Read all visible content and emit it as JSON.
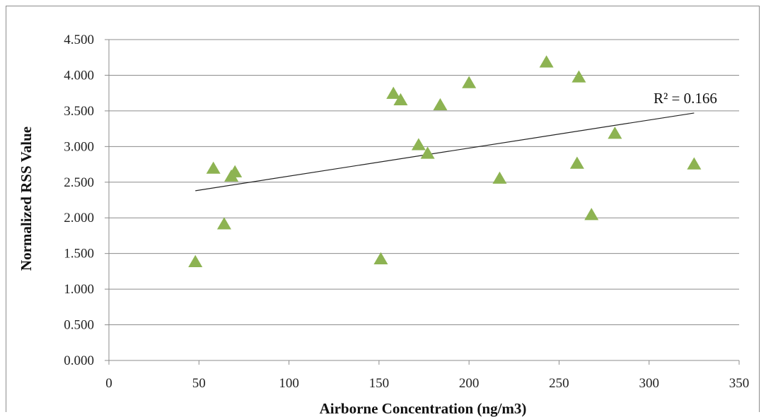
{
  "chart_data": {
    "type": "scatter",
    "title": "",
    "xlabel": "Airborne Concentration (ng/m3)",
    "ylabel": "Normalized RSS Value",
    "xlim": [
      0,
      350
    ],
    "ylim": [
      0,
      4.5
    ],
    "x_ticks": [
      "0",
      "50",
      "100",
      "150",
      "200",
      "250",
      "300",
      "350"
    ],
    "y_ticks": [
      "0.000",
      "0.500",
      "1.000",
      "1.500",
      "2.000",
      "2.500",
      "3.000",
      "3.500",
      "4.000",
      "4.500"
    ],
    "grid": true,
    "marker": "triangle",
    "marker_color": "#8db352",
    "points": [
      {
        "x": 48,
        "y": 1.38
      },
      {
        "x": 58,
        "y": 2.69
      },
      {
        "x": 64,
        "y": 1.91
      },
      {
        "x": 68,
        "y": 2.58
      },
      {
        "x": 70,
        "y": 2.64
      },
      {
        "x": 151,
        "y": 1.42
      },
      {
        "x": 158,
        "y": 3.74
      },
      {
        "x": 162,
        "y": 3.65
      },
      {
        "x": 172,
        "y": 3.02
      },
      {
        "x": 177,
        "y": 2.9
      },
      {
        "x": 184,
        "y": 3.58
      },
      {
        "x": 200,
        "y": 3.89
      },
      {
        "x": 217,
        "y": 2.55
      },
      {
        "x": 243,
        "y": 4.18
      },
      {
        "x": 260,
        "y": 2.76
      },
      {
        "x": 261,
        "y": 3.97
      },
      {
        "x": 268,
        "y": 2.04
      },
      {
        "x": 281,
        "y": 3.18
      },
      {
        "x": 325,
        "y": 2.75
      }
    ],
    "trendline": {
      "x": [
        48,
        325
      ],
      "y": [
        2.38,
        3.47
      ],
      "color": "#222222"
    },
    "annotation": "R² = 0.166"
  }
}
